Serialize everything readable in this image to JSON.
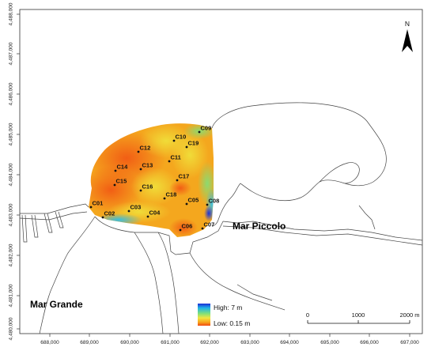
{
  "north_arrow": {
    "label": "N"
  },
  "axes": {
    "x_ticks": [
      "688,000",
      "689,000",
      "690,000",
      "691,000",
      "692,000",
      "693,000",
      "694,000",
      "695,000",
      "696,000",
      "697,000"
    ],
    "y_ticks": [
      "4,488,000",
      "4,487,000",
      "4,486,000",
      "4,485,000",
      "4,484,000",
      "4,483,000",
      "4,482,000",
      "4,481,000",
      "4,480,000"
    ]
  },
  "places": {
    "mar_grande": "Mar Grande",
    "mar_piccolo": "Mar Piccolo"
  },
  "stations": [
    {
      "id": "C01",
      "label": "C01"
    },
    {
      "id": "C02",
      "label": "C02"
    },
    {
      "id": "C03",
      "label": "C03"
    },
    {
      "id": "C04",
      "label": "C04"
    },
    {
      "id": "C05",
      "label": "C05"
    },
    {
      "id": "C06",
      "label": "C06"
    },
    {
      "id": "C07",
      "label": "C07"
    },
    {
      "id": "C08",
      "label": "C08"
    },
    {
      "id": "C09",
      "label": "C09"
    },
    {
      "id": "C10",
      "label": "C10"
    },
    {
      "id": "C11",
      "label": "C11"
    },
    {
      "id": "C12",
      "label": "C12"
    },
    {
      "id": "C13",
      "label": "C13"
    },
    {
      "id": "C14",
      "label": "C14"
    },
    {
      "id": "C15",
      "label": "C15"
    },
    {
      "id": "C16",
      "label": "C16"
    },
    {
      "id": "C17",
      "label": "C17"
    },
    {
      "id": "C18",
      "label": "C18"
    },
    {
      "id": "C19",
      "label": "C19"
    }
  ],
  "legend": {
    "high_label": "High: 7 m",
    "low_label": "Low: 0.15 m",
    "colors": [
      "#1a2bd6",
      "#1fb4e8",
      "#7fe07a",
      "#f2e640",
      "#f7a21c",
      "#f04a12"
    ]
  },
  "scale_bar": {
    "labels": [
      "0",
      "1000",
      "2000 m"
    ]
  }
}
